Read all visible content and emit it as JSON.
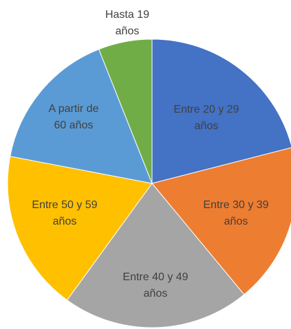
{
  "chart_data": {
    "type": "pie",
    "categories": [
      "Entre 20 y 29 años",
      "Entre 30 y 39 años",
      "Entre 40 y 49 años",
      "Entre 50 y 59 años",
      "A partir de 60 años",
      "Hasta 19 años"
    ],
    "values": [
      21,
      18,
      21,
      18,
      16,
      6
    ],
    "colors": [
      "#4472c4",
      "#ed7d31",
      "#a5a5a5",
      "#ffc000",
      "#5b9bd5",
      "#70ad47"
    ]
  }
}
